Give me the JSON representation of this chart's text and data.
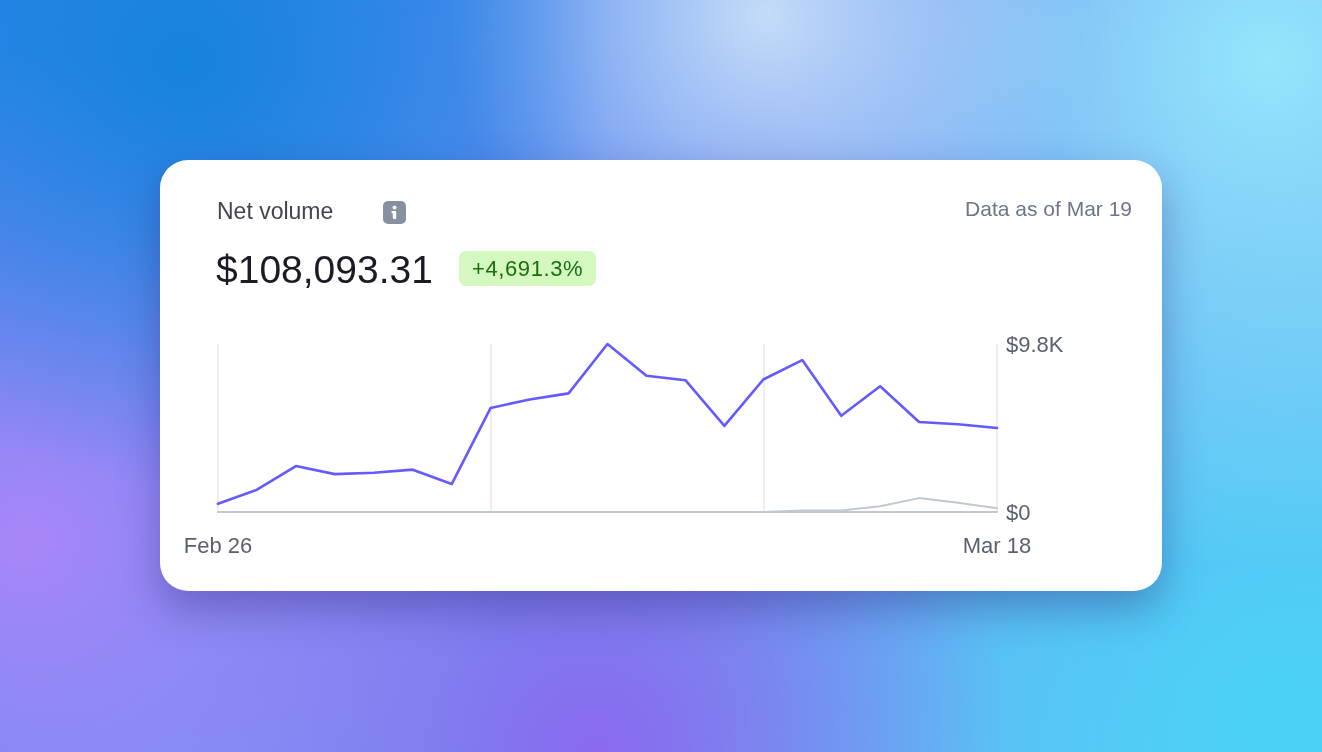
{
  "chart_data": {
    "type": "line",
    "title": "Net volume",
    "subtitle": "$108,093.31",
    "annotations": [
      "+4,691.3%",
      "Data as of Mar 19"
    ],
    "x": [
      "--02-26",
      "--02-27",
      "--02-28",
      "--03-01",
      "--03-02",
      "--03-03",
      "--03-04",
      "--03-05",
      "--03-06",
      "--03-07",
      "--03-08",
      "--03-09",
      "--03-10",
      "--03-11",
      "--03-12",
      "--03-13",
      "--03-14",
      "--03-15",
      "--03-16",
      "--03-17",
      "--03-18"
    ],
    "series": [
      {
        "color": "#635bff",
        "values": [
          480,
          1300,
          2680,
          2210,
          2290,
          2470,
          1630,
          6070,
          6560,
          6920,
          9800,
          7950,
          7690,
          5020,
          7730,
          8860,
          5610,
          7340,
          5250,
          5120,
          4900
        ]
      },
      {
        "color": "#c0c8d2",
        "values": [
          0,
          0,
          0,
          0,
          0,
          0,
          0,
          0,
          0,
          0,
          0,
          0,
          0,
          0,
          0,
          90,
          90,
          340,
          810,
          540,
          220
        ]
      }
    ],
    "xlim": [
      "--02-26",
      "--03-18"
    ],
    "xticks": [
      {
        "value": "--02-26",
        "label": "Feb 26"
      },
      {
        "value": "--03-05",
        "label": null
      },
      {
        "value": "--03-12",
        "label": null
      },
      {
        "value": "--03-18",
        "label": "Mar 18"
      }
    ],
    "ylim": [
      0,
      9800
    ],
    "yticks": [
      {
        "value": 0,
        "label": "$0"
      },
      {
        "value": 9800,
        "label": "$9.8K"
      }
    ],
    "grid": "x",
    "marker": "none"
  }
}
